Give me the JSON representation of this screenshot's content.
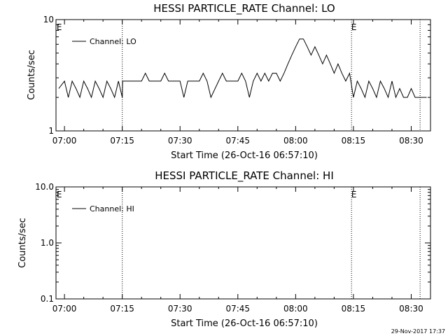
{
  "footer_timestamp": "29-Nov-2017 17:37",
  "chart_data": [
    {
      "type": "line",
      "title": "HESSI PARTICLE_RATE Channel: LO",
      "xlabel": "Start Time (26-Oct-16 06:57:10)",
      "ylabel": "Counts/sec",
      "ylog": true,
      "ylim": [
        1,
        10
      ],
      "ytick_labels": [
        "1",
        "10"
      ],
      "xlim_minutes": [
        -2.2,
        95
      ],
      "xtick_minutes": [
        0,
        15,
        30,
        45,
        60,
        75,
        90
      ],
      "xtick_labels": [
        "07:00",
        "07:15",
        "07:30",
        "07:45",
        "08:00",
        "08:15",
        "08:30"
      ],
      "vlines_minutes": [
        15,
        74.5,
        92.3
      ],
      "event_markers": [
        {
          "minute": -1.5,
          "text": "E"
        },
        {
          "minute": 75,
          "text": "E"
        }
      ],
      "series": [
        {
          "name": "Channel: LO",
          "x_minutes": [
            -1.5,
            0,
            1,
            2,
            3,
            4,
            5,
            6,
            7,
            8,
            9,
            10,
            11,
            12,
            13,
            14,
            15,
            15.1,
            20,
            21,
            22,
            25,
            26,
            27,
            30,
            31,
            32,
            35,
            36,
            37,
            38,
            40,
            41,
            42,
            45,
            46,
            47,
            48,
            49,
            50,
            51,
            52,
            53,
            54,
            55,
            56,
            57,
            58,
            59,
            60,
            61,
            62,
            63,
            64,
            65,
            66,
            67,
            68,
            69,
            70,
            71,
            72,
            73,
            74,
            75,
            76,
            77,
            78,
            79,
            80,
            81,
            82,
            83,
            84,
            85,
            86,
            87,
            88,
            89,
            90,
            91,
            92,
            93,
            94
          ],
          "y": [
            2.4,
            2.8,
            2.0,
            2.8,
            2.4,
            2.0,
            2.8,
            2.4,
            2.0,
            2.8,
            2.4,
            2.0,
            2.8,
            2.4,
            2.0,
            2.8,
            2.0,
            2.8,
            2.8,
            3.3,
            2.8,
            2.8,
            3.3,
            2.8,
            2.8,
            2.0,
            2.8,
            2.8,
            3.3,
            2.8,
            2.0,
            2.8,
            3.3,
            2.8,
            2.8,
            3.3,
            2.8,
            2.0,
            2.8,
            3.3,
            2.8,
            3.3,
            2.8,
            3.3,
            3.3,
            2.8,
            3.3,
            4.0,
            4.8,
            5.7,
            6.7,
            6.7,
            5.7,
            4.8,
            5.7,
            4.8,
            4.0,
            4.8,
            4.0,
            3.3,
            4.0,
            3.3,
            2.8,
            3.3,
            2.0,
            2.8,
            2.4,
            2.0,
            2.8,
            2.4,
            2.0,
            2.8,
            2.4,
            2.0,
            2.8,
            2.0,
            2.4,
            2.0,
            2.0,
            2.4,
            2.0,
            2.0,
            2.0,
            2.0
          ]
        }
      ]
    },
    {
      "type": "line",
      "title": "HESSI PARTICLE_RATE Channel: HI",
      "xlabel": "Start Time (26-Oct-16 06:57:10)",
      "ylabel": "Counts/sec",
      "ylog": true,
      "ylim": [
        0.1,
        10
      ],
      "ytick_labels": [
        "0.1",
        "1.0",
        "10.0"
      ],
      "xlim_minutes": [
        -2.2,
        95
      ],
      "xtick_minutes": [
        0,
        15,
        30,
        45,
        60,
        75,
        90
      ],
      "xtick_labels": [
        "07:00",
        "07:15",
        "07:30",
        "07:45",
        "08:00",
        "08:15",
        "08:30"
      ],
      "vlines_minutes": [
        15,
        74.5,
        92.3
      ],
      "event_markers": [
        {
          "minute": -1.5,
          "text": "E"
        },
        {
          "minute": 75,
          "text": "E"
        }
      ],
      "series": [
        {
          "name": "Channel: HI",
          "x_minutes": [],
          "y": []
        }
      ]
    }
  ]
}
